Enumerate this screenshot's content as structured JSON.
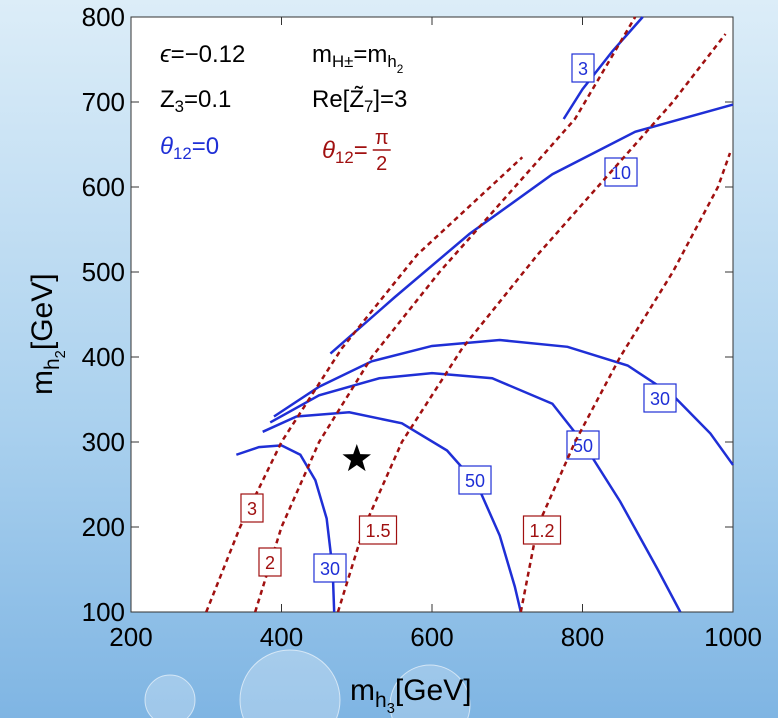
{
  "chart_data": {
    "type": "contour",
    "xlabel": [
      {
        "text": "m"
      },
      {
        "text": "h",
        "level": 1
      },
      {
        "text": "3",
        "level": 2
      },
      {
        "text": "[GeV]"
      }
    ],
    "ylabel": [
      {
        "text": "m"
      },
      {
        "text": "h",
        "level": 1
      },
      {
        "text": "2",
        "level": 2
      },
      {
        "text": "[GeV]"
      }
    ],
    "xlim": [
      200,
      1000
    ],
    "xticks": [
      200,
      400,
      600,
      800,
      1000
    ],
    "ylim": [
      100,
      800
    ],
    "yticks": [
      100,
      200,
      300,
      400,
      500,
      600,
      700,
      800
    ],
    "annotations": [
      {
        "color": "#000000",
        "parts": [
          {
            "text": "ϵ",
            "italic": true
          },
          {
            "text": "=−0.12"
          }
        ]
      },
      {
        "color": "#000000",
        "parts": [
          {
            "text": "Z"
          },
          {
            "text": "3",
            "level": 1
          },
          {
            "text": "=0.1"
          }
        ]
      },
      {
        "color": "#1f2fd6",
        "parts": [
          {
            "text": "θ",
            "italic": true
          },
          {
            "text": "12",
            "level": 1
          },
          {
            "text": "=0"
          }
        ]
      },
      {
        "color": "#000000",
        "parts": [
          {
            "text": "m"
          },
          {
            "text": "H±",
            "level": 1
          },
          {
            "text": "=m"
          },
          {
            "text": "h",
            "level": 1
          },
          {
            "text": "2",
            "level": 2
          }
        ]
      },
      {
        "color": "#000000",
        "parts": [
          {
            "text": "Re[Z̃"
          },
          {
            "text": "7",
            "level": 1
          },
          {
            "text": "]=3"
          }
        ]
      },
      {
        "color": "#a01010",
        "parts": [
          {
            "text": "θ",
            "italic": true
          },
          {
            "text": "12",
            "level": 1
          },
          {
            "text": "= "
          }
        ],
        "fraction": {
          "num": "π",
          "den": "2"
        }
      }
    ],
    "marker": {
      "x": 500,
      "y": 280
    },
    "contours": [
      {
        "level": 30,
        "color": "#1f2fd6",
        "dashed": false,
        "x": [
          340,
          370,
          400,
          425,
          445,
          460,
          468,
          470
        ],
        "y": [
          285,
          294,
          296,
          285,
          255,
          210,
          150,
          100
        ]
      },
      {
        "level": 50,
        "color": "#1f2fd6",
        "dashed": false,
        "x": [
          375,
          420,
          490,
          560,
          620,
          660,
          690,
          710,
          718
        ],
        "y": [
          312,
          330,
          335,
          322,
          290,
          250,
          190,
          130,
          100
        ]
      },
      {
        "level": 50,
        "color": "#1f2fd6",
        "dashed": false,
        "x": [
          385,
          450,
          530,
          600,
          680,
          760,
          800,
          850,
          900,
          930
        ],
        "y": [
          323,
          355,
          375,
          381,
          375,
          345,
          300,
          230,
          150,
          100
        ]
      },
      {
        "level": 30,
        "color": "#1f2fd6",
        "dashed": false,
        "x": [
          390,
          450,
          520,
          600,
          690,
          780,
          860,
          920,
          970,
          1000
        ],
        "y": [
          330,
          365,
          395,
          413,
          420,
          412,
          390,
          355,
          310,
          273
        ]
      },
      {
        "level": 10,
        "color": "#1f2fd6",
        "dashed": false,
        "x": [
          465,
          550,
          650,
          760,
          870,
          1000
        ],
        "y": [
          404,
          470,
          545,
          615,
          665,
          697
        ]
      },
      {
        "level": 3,
        "color": "#1f2fd6",
        "dashed": false,
        "x": [
          880,
          840,
          800,
          775
        ],
        "y": [
          800,
          760,
          715,
          680
        ]
      },
      {
        "level": 3,
        "color": "#a01010",
        "dashed": true,
        "x": [
          300,
          345,
          400,
          480,
          580,
          720
        ],
        "y": [
          100,
          200,
          300,
          410,
          520,
          635
        ]
      },
      {
        "level": 2,
        "color": "#a01010",
        "dashed": true,
        "x": [
          365,
          400,
          450,
          520,
          610,
          720,
          790,
          870
        ],
        "y": [
          100,
          200,
          300,
          400,
          500,
          610,
          680,
          800
        ]
      },
      {
        "level": 1.5,
        "color": "#a01010",
        "dashed": true,
        "x": [
          475,
          510,
          560,
          640,
          740,
          830,
          920,
          990
        ],
        "y": [
          100,
          200,
          300,
          410,
          520,
          610,
          700,
          780
        ]
      },
      {
        "level": 1.2,
        "color": "#a01010",
        "dashed": true,
        "x": [
          718,
          740,
          790,
          850,
          920,
          980,
          996
        ],
        "y": [
          100,
          200,
          300,
          400,
          500,
          600,
          640
        ]
      }
    ]
  }
}
